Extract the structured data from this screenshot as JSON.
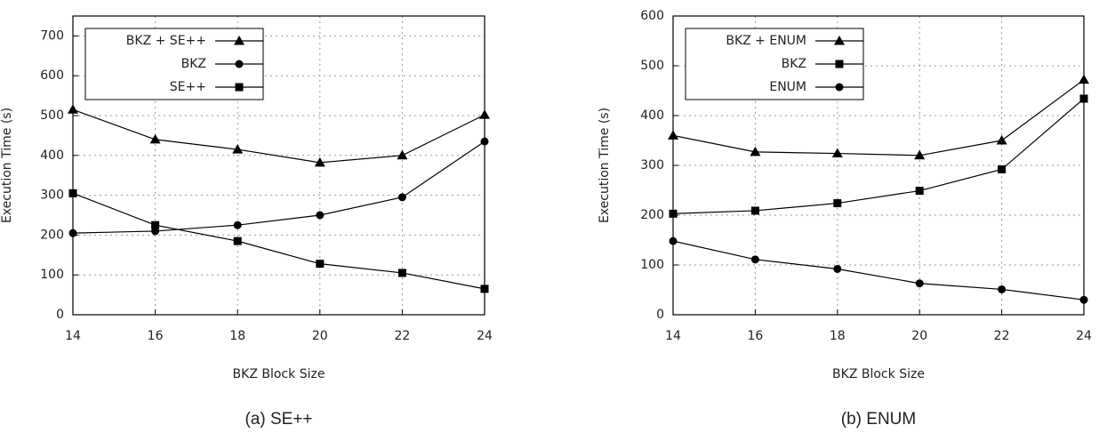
{
  "chart_data": [
    {
      "type": "line",
      "caption": "(a)  SE++",
      "xlabel": "BKZ Block Size",
      "ylabel": "Execution Time (s)",
      "x": [
        14,
        16,
        18,
        20,
        22,
        24
      ],
      "xlim": [
        14,
        24
      ],
      "xticks": [
        14,
        16,
        18,
        20,
        22,
        24
      ],
      "ylim": [
        0,
        750
      ],
      "yticks": [
        0,
        100,
        200,
        300,
        400,
        500,
        600,
        700
      ],
      "grid": true,
      "legend": "upper left",
      "series": [
        {
          "name": "BKZ + SE++",
          "color": "#000000",
          "marker": "triangle",
          "values": [
            515,
            440,
            415,
            382,
            400,
            502
          ]
        },
        {
          "name": "BKZ",
          "color": "#000000",
          "marker": "circle",
          "values": [
            205,
            210,
            225,
            250,
            295,
            435
          ]
        },
        {
          "name": "SE++",
          "color": "#000000",
          "marker": "square",
          "values": [
            305,
            225,
            185,
            128,
            105,
            65
          ]
        }
      ]
    },
    {
      "type": "line",
      "caption": "(b)  ENUM",
      "xlabel": "BKZ Block Size",
      "ylabel": "Execution Time (s)",
      "x": [
        14,
        16,
        18,
        20,
        22,
        24
      ],
      "xlim": [
        14,
        24
      ],
      "xticks": [
        14,
        16,
        18,
        20,
        22,
        24
      ],
      "ylim": [
        0,
        600
      ],
      "yticks": [
        0,
        100,
        200,
        300,
        400,
        500,
        600
      ],
      "grid": true,
      "legend": "upper left",
      "series": [
        {
          "name": "BKZ + ENUM",
          "color": "#000000",
          "marker": "triangle",
          "values": [
            360,
            327,
            324,
            320,
            350,
            472
          ]
        },
        {
          "name": "BKZ",
          "color": "#000000",
          "marker": "square",
          "values": [
            203,
            209,
            224,
            249,
            292,
            434
          ]
        },
        {
          "name": "ENUM",
          "color": "#000000",
          "marker": "circle",
          "values": [
            148,
            111,
            92,
            63,
            51,
            30
          ]
        }
      ]
    }
  ]
}
